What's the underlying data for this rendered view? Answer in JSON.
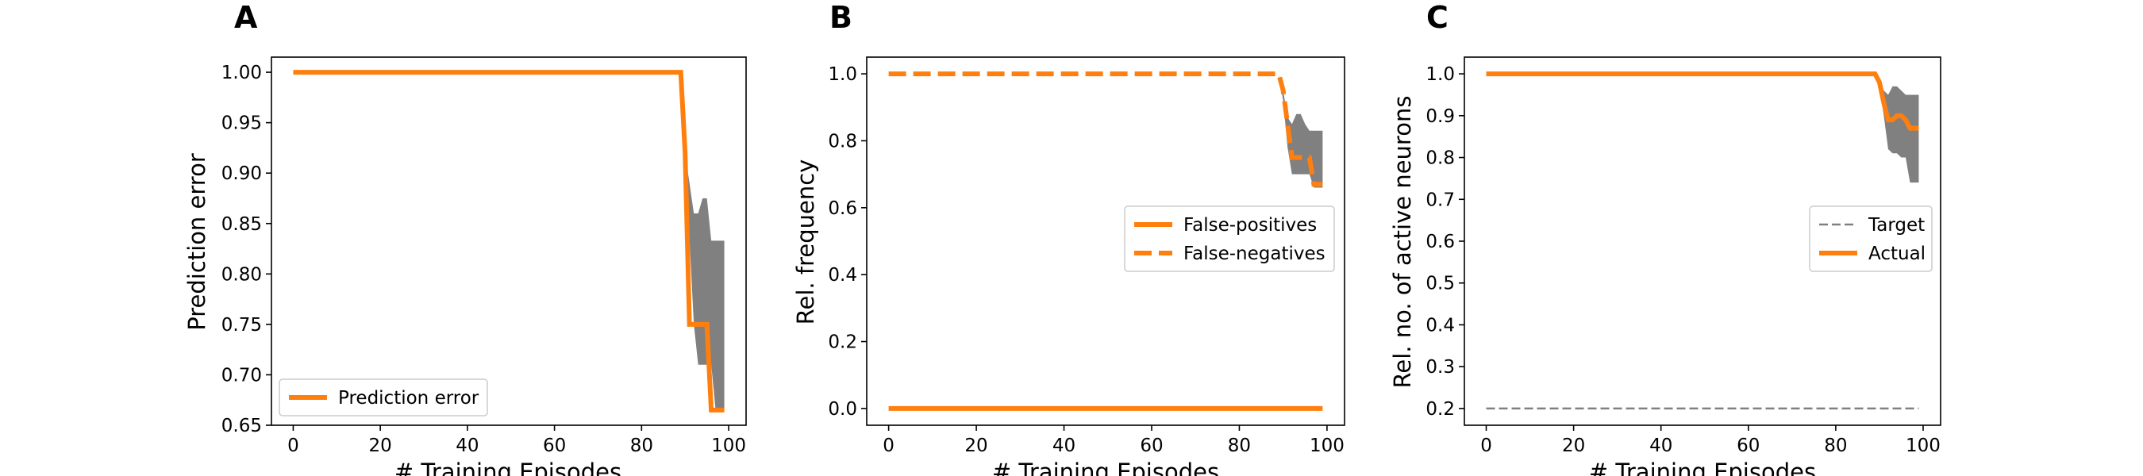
{
  "colors": {
    "actual": "#ff7f0e",
    "band": "#808080",
    "target": "#808080",
    "axis": "#000000"
  },
  "chart_data": [
    {
      "panel": "A",
      "type": "line",
      "xlabel": "# Training Episodes",
      "ylabel": "Prediction error",
      "xlim": [
        -5,
        104
      ],
      "ylim": [
        0.65,
        1.015
      ],
      "xticks": [
        "0",
        "20",
        "40",
        "60",
        "80",
        "100"
      ],
      "yticks": [
        "0.65",
        "0.70",
        "0.75",
        "0.80",
        "0.85",
        "0.90",
        "0.95",
        "1.00"
      ],
      "legend_position": "lower-left",
      "band": {
        "x": [
          0,
          88,
          90,
          92,
          93,
          94,
          95,
          96,
          97,
          98,
          99
        ],
        "upper": [
          1.0,
          1.0,
          0.92,
          0.86,
          0.86,
          0.875,
          0.875,
          0.833,
          0.833,
          0.833,
          0.833
        ],
        "lower": [
          1.0,
          1.0,
          0.92,
          0.75,
          0.71,
          0.71,
          0.71,
          0.71,
          0.665,
          0.665,
          0.665
        ]
      },
      "series": [
        {
          "name": "Prediction error",
          "style": "solid",
          "x": [
            0,
            88,
            89,
            90,
            91,
            92,
            93,
            94,
            95,
            96,
            97,
            98,
            99
          ],
          "y": [
            1.0,
            1.0,
            1.0,
            0.92,
            0.75,
            0.75,
            0.75,
            0.75,
            0.75,
            0.665,
            0.665,
            0.665,
            0.665
          ]
        }
      ]
    },
    {
      "panel": "B",
      "type": "line",
      "xlabel": "# Training Episodes",
      "ylabel": "Rel. frequency",
      "xlim": [
        -5,
        104
      ],
      "ylim": [
        -0.05,
        1.05
      ],
      "xticks": [
        "0",
        "20",
        "40",
        "60",
        "80",
        "100"
      ],
      "yticks": [
        "0.0",
        "0.2",
        "0.4",
        "0.6",
        "0.8",
        "1.0"
      ],
      "legend_position": "center-right",
      "band": {
        "x": [
          0,
          88,
          89,
          90,
          91,
          92,
          93,
          94,
          95,
          96,
          97,
          98,
          99
        ],
        "upper": [
          1.0,
          1.0,
          1.0,
          0.95,
          0.87,
          0.85,
          0.88,
          0.88,
          0.85,
          0.83,
          0.83,
          0.83,
          0.83
        ],
        "lower": [
          1.0,
          1.0,
          1.0,
          0.92,
          0.78,
          0.7,
          0.7,
          0.7,
          0.7,
          0.7,
          0.66,
          0.66,
          0.66
        ]
      },
      "series": [
        {
          "name": "False-positives",
          "style": "solid",
          "x": [
            0,
            99
          ],
          "y": [
            0.0,
            0.0
          ]
        },
        {
          "name": "False-negatives",
          "style": "dashed",
          "x": [
            0,
            88,
            89,
            90,
            91,
            92,
            93,
            94,
            95,
            96,
            97,
            98,
            99
          ],
          "y": [
            1.0,
            1.0,
            1.0,
            0.95,
            0.85,
            0.75,
            0.75,
            0.75,
            0.75,
            0.75,
            0.67,
            0.67,
            0.67
          ]
        }
      ]
    },
    {
      "panel": "C",
      "type": "line",
      "xlabel": "# Training Episodes",
      "ylabel": "Rel. no. of active neurons",
      "xlim": [
        -5,
        104
      ],
      "ylim": [
        0.16,
        1.04
      ],
      "xticks": [
        "0",
        "20",
        "40",
        "60",
        "80",
        "100"
      ],
      "yticks": [
        "0.2",
        "0.3",
        "0.4",
        "0.5",
        "0.6",
        "0.7",
        "0.8",
        "0.9",
        "1.0"
      ],
      "legend_position": "center-right",
      "band": {
        "x": [
          0,
          88,
          89,
          90,
          91,
          92,
          93,
          94,
          95,
          96,
          97,
          98,
          99
        ],
        "upper": [
          1.0,
          1.0,
          1.0,
          0.99,
          0.96,
          0.95,
          0.97,
          0.97,
          0.96,
          0.95,
          0.95,
          0.95,
          0.95
        ],
        "lower": [
          1.0,
          1.0,
          1.0,
          0.97,
          0.9,
          0.82,
          0.81,
          0.81,
          0.8,
          0.8,
          0.74,
          0.74,
          0.74
        ]
      },
      "series": [
        {
          "name": "Target",
          "style": "dashed-thin",
          "x": [
            0,
            99
          ],
          "y": [
            0.2,
            0.2
          ]
        },
        {
          "name": "Actual",
          "style": "solid",
          "x": [
            0,
            88,
            89,
            90,
            91,
            92,
            93,
            94,
            95,
            96,
            97,
            98,
            99
          ],
          "y": [
            1.0,
            1.0,
            1.0,
            0.98,
            0.93,
            0.89,
            0.89,
            0.9,
            0.9,
            0.89,
            0.87,
            0.87,
            0.87
          ]
        }
      ]
    }
  ]
}
